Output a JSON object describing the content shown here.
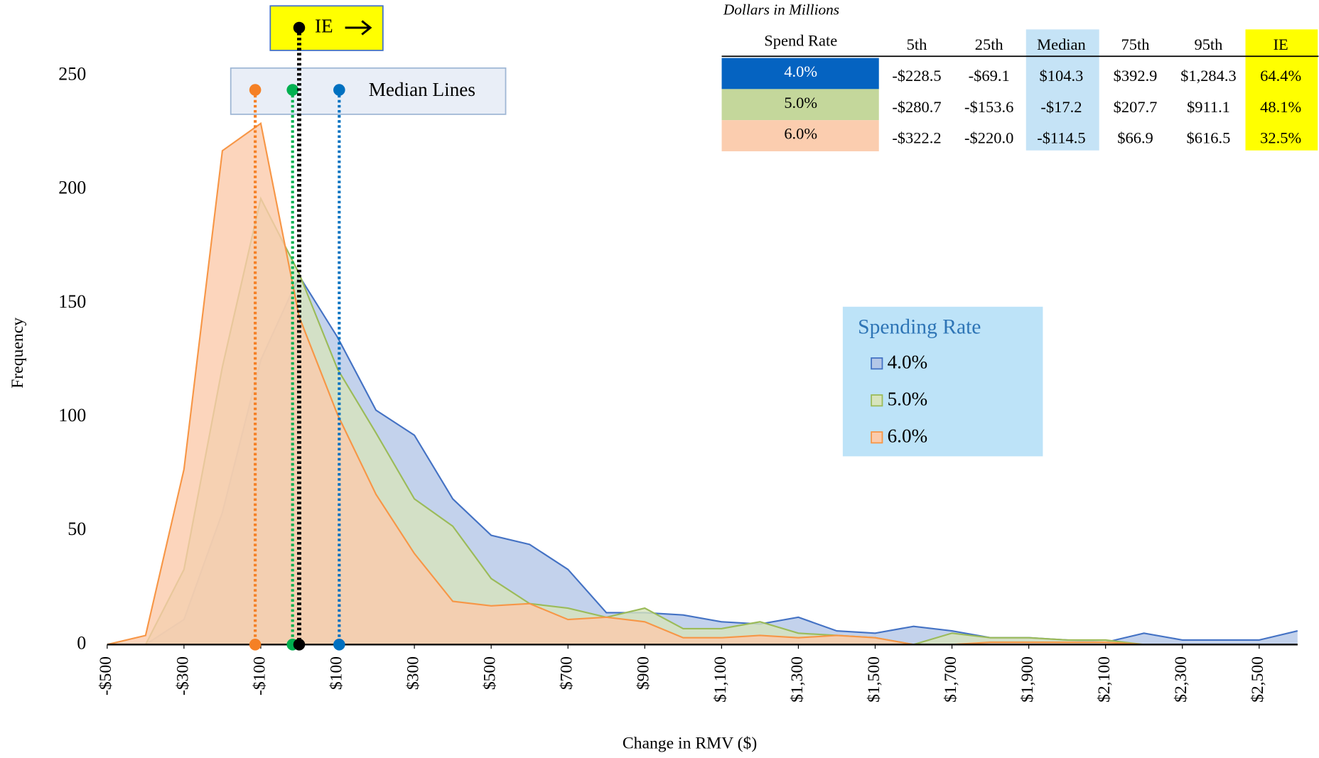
{
  "chart_data": {
    "type": "area",
    "x_label": "Change in RMV ($)",
    "y_label": "Frequency",
    "x": [
      -500,
      -400,
      -300,
      -200,
      -100,
      0,
      100,
      200,
      300,
      400,
      500,
      600,
      700,
      800,
      900,
      1000,
      1100,
      1200,
      1300,
      1400,
      1500,
      1600,
      1700,
      1800,
      1900,
      2000,
      2100,
      2200,
      2300,
      2400,
      2500,
      2600
    ],
    "series": [
      {
        "name": "4.0%",
        "color": "#4472c4",
        "fill": "#b4c7e7",
        "values": [
          0,
          0,
          11,
          58,
          125,
          162,
          135,
          103,
          92,
          64,
          48,
          44,
          33,
          14,
          14,
          13,
          10,
          9,
          12,
          6,
          5,
          8,
          6,
          3,
          3,
          2,
          1,
          5,
          2,
          2,
          2,
          6
        ]
      },
      {
        "name": "5.0%",
        "color": "#9bbb59",
        "fill": "#d7e4bd",
        "values": [
          0,
          0,
          33,
          122,
          196,
          163,
          121,
          93,
          64,
          52,
          29,
          18,
          16,
          12,
          16,
          7,
          7,
          10,
          5,
          4,
          3,
          0,
          5,
          3,
          3,
          2,
          2,
          0,
          0,
          0,
          0,
          0
        ]
      },
      {
        "name": "6.0%",
        "color": "#f79646",
        "fill": "#fbcbab",
        "values": [
          0,
          4,
          77,
          217,
          229,
          144,
          101,
          66,
          40,
          19,
          17,
          18,
          11,
          12,
          10,
          3,
          3,
          4,
          3,
          4,
          3,
          0,
          0,
          1,
          1,
          1,
          1,
          0,
          0,
          0,
          0,
          0
        ]
      }
    ],
    "xlim": [
      -500,
      2600
    ],
    "ylim": [
      0,
      250
    ],
    "xticks": [
      {
        "value": -500,
        "label": "-$500"
      },
      {
        "value": -300,
        "label": "-$300"
      },
      {
        "value": -100,
        "label": "-$100"
      },
      {
        "value": 100,
        "label": "$100"
      },
      {
        "value": 300,
        "label": "$300"
      },
      {
        "value": 500,
        "label": "$500"
      },
      {
        "value": 700,
        "label": "$700"
      },
      {
        "value": 900,
        "label": "$900"
      },
      {
        "value": 1100,
        "label": "$1,100"
      },
      {
        "value": 1300,
        "label": "$1,300"
      },
      {
        "value": 1500,
        "label": "$1,500"
      },
      {
        "value": 1700,
        "label": "$1,700"
      },
      {
        "value": 1900,
        "label": "$1,900"
      },
      {
        "value": 2100,
        "label": "$2,100"
      },
      {
        "value": 2300,
        "label": "$2,300"
      },
      {
        "value": 2500,
        "label": "$2,500"
      }
    ],
    "yticks": [
      0,
      50,
      100,
      150,
      200,
      250
    ],
    "legend": {
      "title": "Spending Rate",
      "position": "right"
    },
    "median_lines": {
      "label": "Median Lines",
      "values": [
        104.3,
        -17.2,
        -114.5
      ],
      "colors": [
        "#0070c0",
        "#00b050",
        "#f58025"
      ]
    },
    "ie_line": {
      "label": "IE",
      "x": 0,
      "color": "#000000"
    }
  },
  "table": {
    "note": "Dollars in Millions",
    "header": [
      "Spend Rate",
      "5th",
      "25th",
      "Median",
      "75th",
      "95th",
      "IE"
    ],
    "rows": [
      [
        "4.0%",
        "-$228.5",
        "-$69.1",
        "$104.3",
        "$392.9",
        "$1,284.3",
        "64.4%"
      ],
      [
        "5.0%",
        "-$280.7",
        "-$153.6",
        "-$17.2",
        "$207.7",
        "$911.1",
        "48.1%"
      ],
      [
        "6.0%",
        "-$322.2",
        "-$220.0",
        "-$114.5",
        "$66.9",
        "$616.5",
        "32.5%"
      ]
    ]
  }
}
